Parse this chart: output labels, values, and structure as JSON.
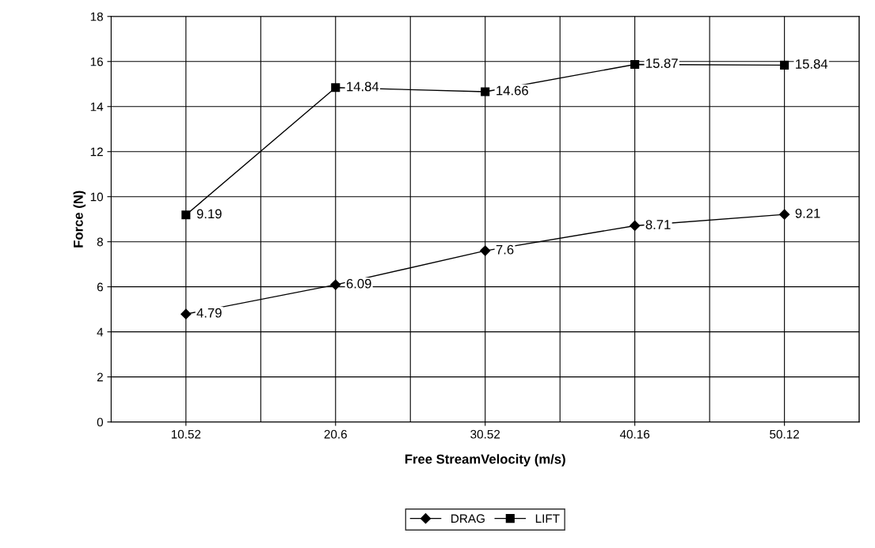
{
  "chart_data": {
    "type": "line",
    "xlabel": "Free StreamVelocity (m/s)",
    "ylabel": "Force (N)",
    "categories": [
      "10.52",
      "20.6",
      "30.52",
      "40.16",
      "50.12"
    ],
    "series": [
      {
        "name": "DRAG",
        "color": "#000000",
        "marker": "diamond",
        "values": [
          4.79,
          6.09,
          7.6,
          8.71,
          9.21
        ]
      },
      {
        "name": "LIFT",
        "color": "#000000",
        "marker": "square",
        "values": [
          9.19,
          14.84,
          14.66,
          15.87,
          15.84
        ]
      }
    ],
    "ylim": [
      0,
      18
    ],
    "yticks": [
      0,
      2,
      4,
      6,
      8,
      10,
      12,
      14,
      16,
      18
    ],
    "grid": true,
    "legend": "bottom",
    "data_labels": true,
    "line_style": "solid"
  }
}
